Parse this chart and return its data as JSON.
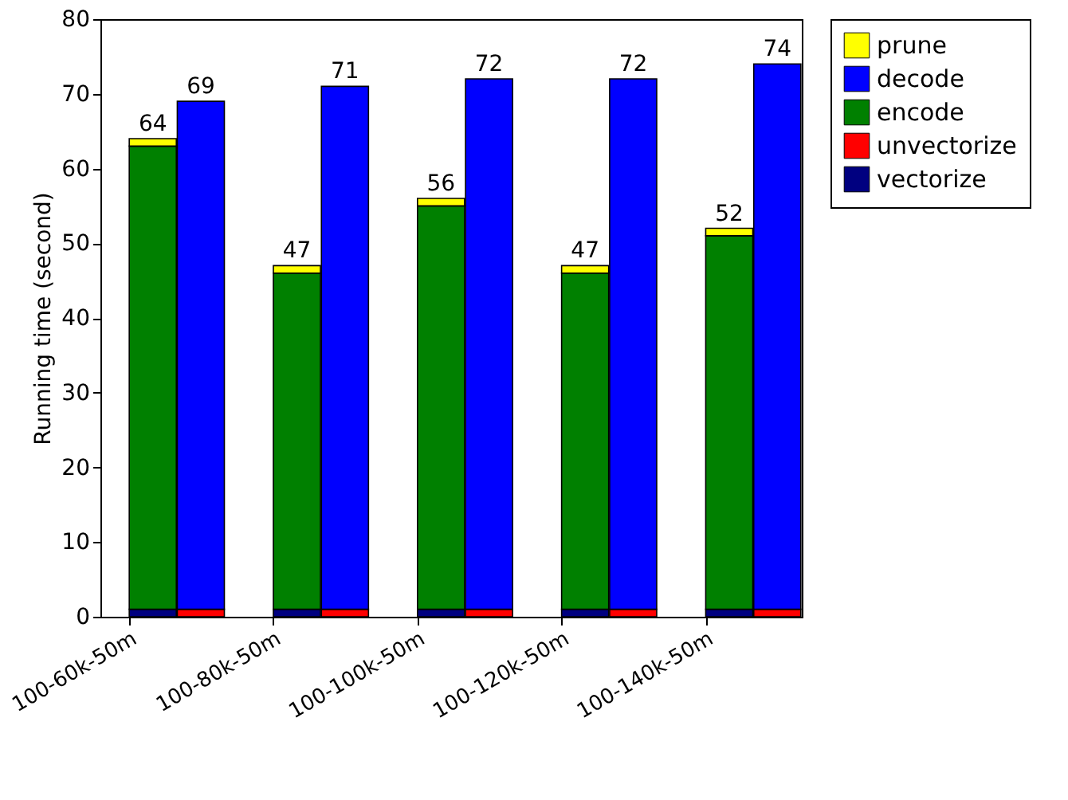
{
  "chart_data": {
    "type": "bar",
    "stacked": true,
    "ylabel": "Running time (second)",
    "categories": [
      "100-60k-50m",
      null,
      "100-80k-50m",
      null,
      "100-100k-50m",
      null,
      "100-120k-50m",
      null,
      "100-140k-50m",
      null
    ],
    "series": [
      {
        "name": "vectorize",
        "color": "#000080",
        "values": [
          1,
          null,
          1,
          null,
          1,
          null,
          1,
          null,
          1,
          null
        ]
      },
      {
        "name": "unvectorize",
        "color": "#ff0000",
        "values": [
          null,
          1,
          null,
          1,
          null,
          1,
          null,
          1,
          null,
          1
        ]
      },
      {
        "name": "encode",
        "color": "#008000",
        "values": [
          62,
          null,
          45,
          null,
          54,
          null,
          45,
          null,
          50,
          null
        ]
      },
      {
        "name": "decode",
        "color": "#0000ff",
        "values": [
          null,
          68,
          null,
          70,
          null,
          71,
          null,
          71,
          null,
          73
        ]
      },
      {
        "name": "prune",
        "color": "#ffff00",
        "values": [
          1,
          null,
          1,
          null,
          1,
          null,
          1,
          null,
          1,
          null
        ]
      }
    ],
    "totals": [
      "64",
      "69",
      "47",
      "71",
      "56",
      "72",
      "47",
      "72",
      "52",
      "74"
    ],
    "ylim": [
      0,
      80
    ],
    "yticks": [
      0,
      10,
      20,
      30,
      40,
      50,
      60,
      70,
      80
    ],
    "grid": false,
    "legend": "right"
  }
}
